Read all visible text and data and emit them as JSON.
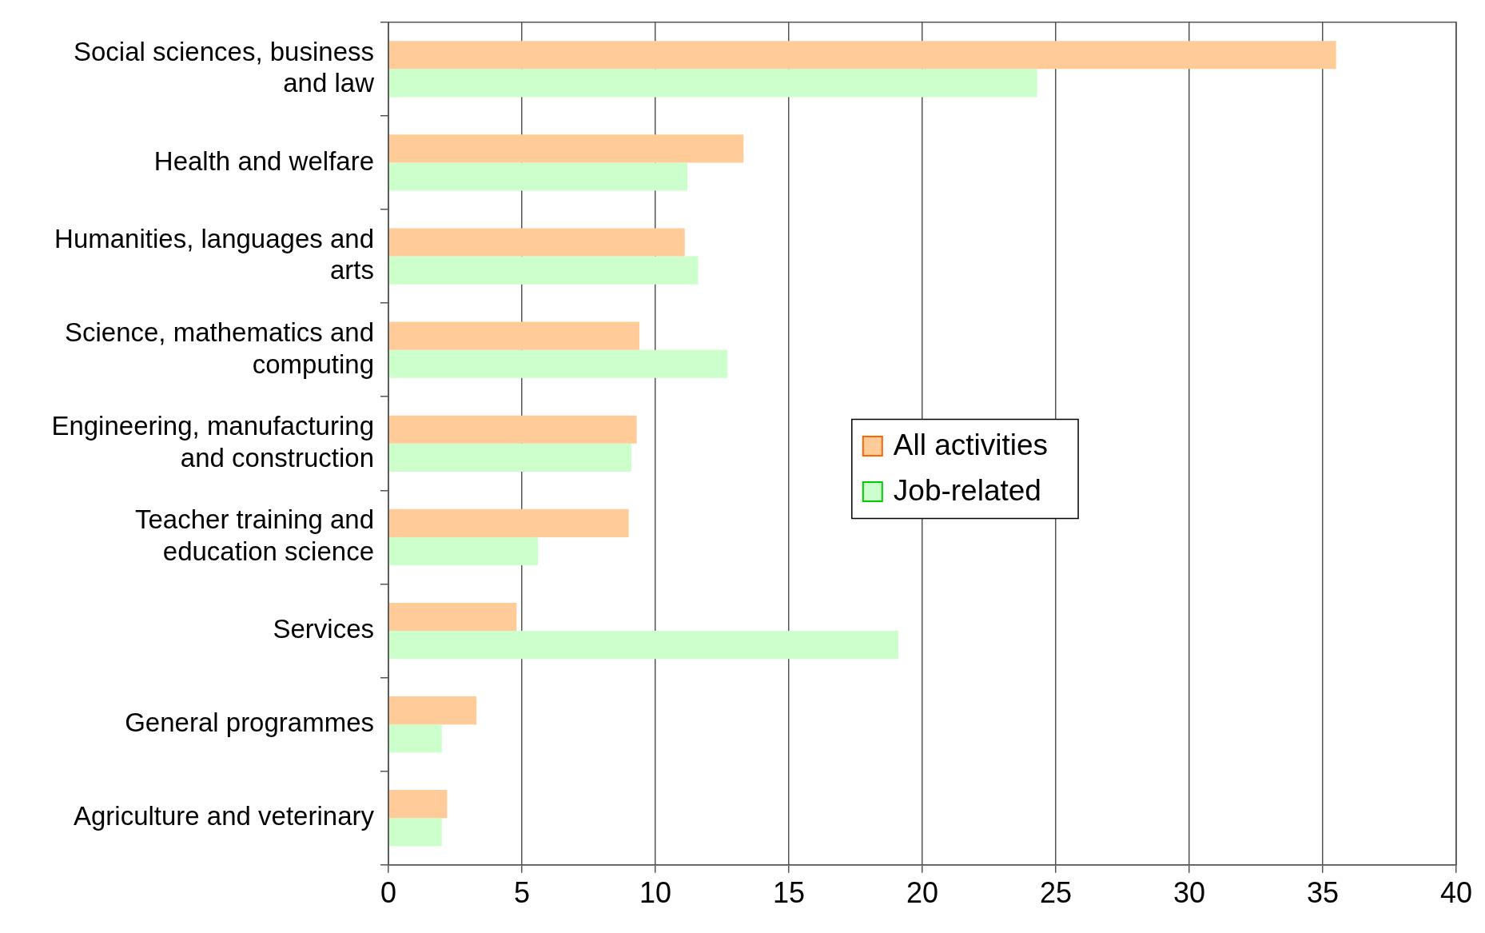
{
  "chart_data": {
    "type": "bar",
    "orientation": "horizontal",
    "categories": [
      "Social sciences, business and law",
      "Health and welfare",
      "Humanities, languages and arts",
      "Science, mathematics and computing",
      "Engineering, manufacturing and construction",
      "Teacher training and education science",
      "Services",
      "General programmes",
      "Agriculture and veterinary"
    ],
    "series": [
      {
        "name": "All activities",
        "color": "#ffcc99",
        "values": [
          35.5,
          13.3,
          11.1,
          9.4,
          9.3,
          9.0,
          4.8,
          3.3,
          2.2
        ]
      },
      {
        "name": "Job-related",
        "color": "#ccffcc",
        "values": [
          24.3,
          11.2,
          11.6,
          12.7,
          9.1,
          5.6,
          19.1,
          2.0,
          2.0
        ]
      }
    ],
    "xlim": [
      0,
      40
    ],
    "xticks": [
      0,
      5,
      10,
      15,
      20,
      25,
      30,
      35,
      40
    ],
    "grid": "x",
    "legend": "center"
  }
}
